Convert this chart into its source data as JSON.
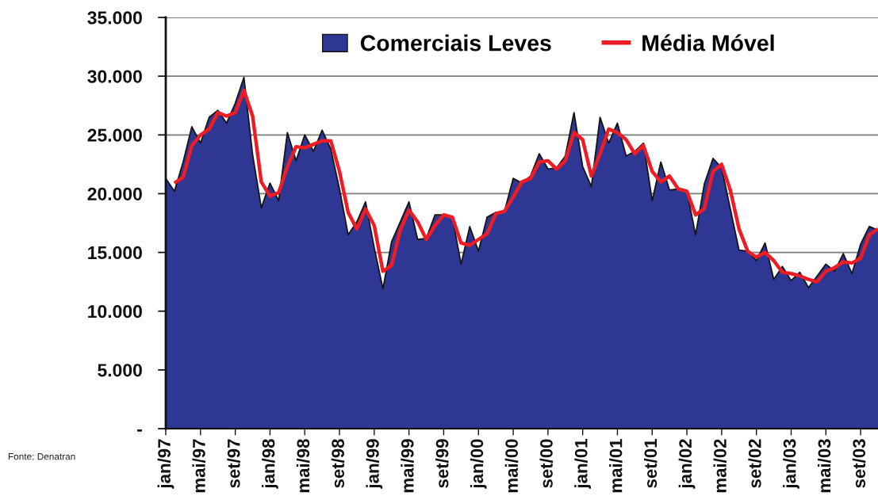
{
  "chart_data": {
    "type": "area",
    "categories": [
      "jan/97",
      null,
      null,
      null,
      "mai/97",
      null,
      null,
      null,
      "set/97",
      null,
      null,
      null,
      "jan/98",
      null,
      null,
      null,
      "mai/98",
      null,
      null,
      null,
      "set/98",
      null,
      null,
      null,
      "jan/99",
      null,
      null,
      null,
      "mai/99",
      null,
      null,
      null,
      "set/99",
      null,
      null,
      null,
      "jan/00",
      null,
      null,
      null,
      "mai/00",
      null,
      null,
      null,
      "set/00",
      null,
      null,
      null,
      "jan/01",
      null,
      null,
      null,
      "mai/01",
      null,
      null,
      null,
      "set/01",
      null,
      null,
      null,
      "jan/02",
      null,
      null,
      null,
      "mai/02",
      null,
      null,
      null,
      "set/02",
      null,
      null,
      null,
      "jan/03",
      null,
      null,
      null,
      "mai/03",
      null,
      null,
      null,
      "set/03",
      null,
      null
    ],
    "series": [
      {
        "name": "Comerciais Leves",
        "color": "#2e3794",
        "values": [
          21300,
          20200,
          22700,
          25700,
          24300,
          26500,
          27100,
          26000,
          27700,
          29900,
          23300,
          18800,
          20900,
          19400,
          25200,
          22800,
          25000,
          23600,
          25400,
          23800,
          20400,
          16500,
          17600,
          19300,
          15400,
          11900,
          15900,
          17600,
          19300,
          16100,
          16200,
          18200,
          18200,
          18000,
          14000,
          17200,
          15100,
          18000,
          18400,
          18500,
          21300,
          20900,
          21500,
          23400,
          22100,
          22200,
          23200,
          26900,
          22300,
          20600,
          26500,
          24300,
          26000,
          23200,
          23600,
          24300,
          19400,
          22700,
          20300,
          20400,
          20200,
          16500,
          20800,
          23000,
          22200,
          18700,
          15200,
          15100,
          14300,
          15800,
          12700,
          13800,
          12600,
          13300,
          12000,
          13000,
          14000,
          13400,
          14900,
          13200,
          15700,
          17200,
          16900
        ]
      },
      {
        "name": "Média Móvel",
        "type": "line",
        "color": "#ee1c25",
        "values": [
          null,
          20900,
          21400,
          24100,
          25000,
          25500,
          26900,
          26600,
          26900,
          28800,
          26600,
          21000,
          19800,
          20100,
          22300,
          24000,
          23900,
          24200,
          24500,
          24500,
          21900,
          18400,
          17000,
          18700,
          17300,
          13400,
          13900,
          16900,
          18600,
          17600,
          16100,
          17300,
          18200,
          18000,
          15800,
          15600,
          16100,
          16600,
          18300,
          18500,
          19700,
          21000,
          21300,
          22700,
          22800,
          22100,
          22800,
          25200,
          24600,
          21500,
          23400,
          25500,
          25200,
          24600,
          23400,
          24100,
          21900,
          21000,
          21500,
          20400,
          20200,
          18200,
          18700,
          21900,
          22500,
          20300,
          17000,
          15100,
          14600,
          15000,
          14300,
          13300,
          13200,
          13000,
          12700,
          12500,
          13400,
          13700,
          14200,
          14100,
          14500,
          16500,
          17000
        ]
      }
    ],
    "ylim": [
      0,
      35000
    ],
    "yticks": [
      {
        "value": 0,
        "label": "-"
      },
      {
        "value": 5000,
        "label": "5.000"
      },
      {
        "value": 10000,
        "label": "10.000"
      },
      {
        "value": 15000,
        "label": "15.000"
      },
      {
        "value": 20000,
        "label": "20.000"
      },
      {
        "value": 25000,
        "label": "25.000"
      },
      {
        "value": 30000,
        "label": "30.000"
      },
      {
        "value": 35000,
        "label": "35.000"
      }
    ],
    "grid": "y",
    "legend": "top",
    "annotations": [
      "Fonte: Denatran"
    ]
  }
}
